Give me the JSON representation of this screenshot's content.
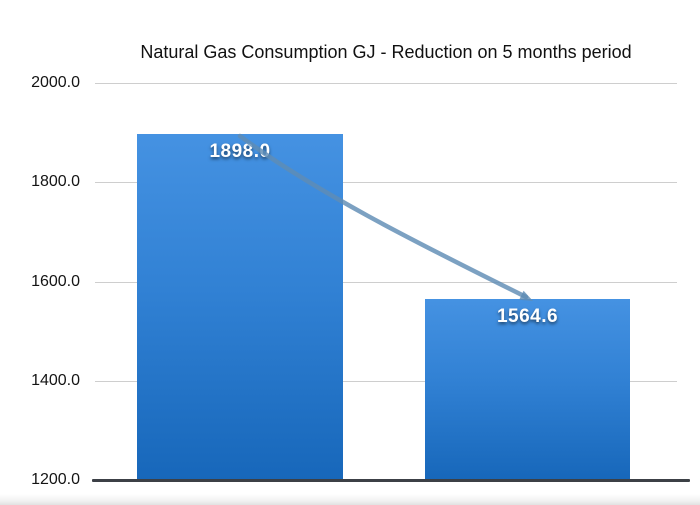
{
  "title": "Natural Gas Consumption GJ - Reduction on 5 months period",
  "chart_data": {
    "type": "bar",
    "title": "Natural Gas Consumption GJ - Reduction on 5 months period",
    "values": [
      1898.0,
      1564.6
    ],
    "bar_labels": [
      "1898.0",
      "1564.6"
    ],
    "ylim": [
      1200,
      2000
    ],
    "y_ticks": [
      2000,
      1800,
      1600,
      1400,
      1200
    ],
    "y_tick_labels": [
      "2000.0",
      "1800.0",
      "1600.0",
      "1400.0",
      "1200.0"
    ],
    "xlabel": "",
    "ylabel": "",
    "grid": "horizontal gridlines on",
    "legend": "none",
    "annotations": [
      "curved connector arrow from top of first bar down to top of second bar"
    ],
    "colors": {
      "bar_gradient_top": "#4592e2",
      "bar_gradient_bottom": "#1767ba",
      "connector": "#5f8cb5",
      "gridline": "#cecece",
      "axis_line": "#3c4046",
      "value_label_text": "#ffffff",
      "title_text": "#111111",
      "background": "#ffffff"
    }
  }
}
